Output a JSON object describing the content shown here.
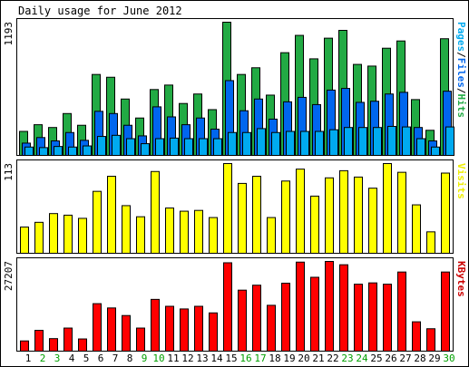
{
  "chart_data": {
    "type": "bar",
    "title": "Daily usage for June 2012",
    "categories": [
      "1",
      "2",
      "3",
      "4",
      "5",
      "6",
      "7",
      "8",
      "9",
      "10",
      "11",
      "12",
      "13",
      "14",
      "15",
      "16",
      "17",
      "18",
      "19",
      "20",
      "21",
      "22",
      "23",
      "24",
      "25",
      "26",
      "27",
      "28",
      "29",
      "30"
    ],
    "weekend_days": [
      "2",
      "3",
      "9",
      "10",
      "16",
      "17",
      "23",
      "24",
      "30"
    ],
    "panels": [
      {
        "id": "hits",
        "max_label": "1193",
        "ylim": [
          0,
          1193
        ],
        "legend": [
          {
            "text": "Pages",
            "color": "#00aaf0"
          },
          {
            "text": "/",
            "color": "#000000"
          },
          {
            "text": "Files",
            "color": "#0066ee"
          },
          {
            "text": "/",
            "color": "#000000"
          },
          {
            "text": "Hits",
            "color": "#22aa44"
          }
        ],
        "series": [
          {
            "name": "Hits",
            "color": "#22aa44",
            "values": [
              215,
              275,
              250,
              375,
              270,
              725,
              700,
              505,
              335,
              590,
              630,
              465,
              550,
              410,
              1193,
              725,
              785,
              540,
              920,
              1075,
              865,
              1050,
              1120,
              815,
              800,
              960,
              1025,
              500,
              225,
              1045
            ]
          },
          {
            "name": "Files",
            "color": "#0066ee",
            "values": [
              110,
              160,
              130,
              205,
              135,
              395,
              375,
              270,
              175,
              435,
              345,
              275,
              335,
              235,
              670,
              400,
              505,
              325,
              480,
              520,
              455,
              585,
              600,
              475,
              485,
              550,
              565,
              250,
              130,
              575
            ]
          },
          {
            "name": "Pages",
            "color": "#00aaf0",
            "values": [
              75,
              70,
              80,
              75,
              85,
              170,
              180,
              150,
              105,
              150,
              155,
              150,
              150,
              150,
              205,
              205,
              240,
              205,
              215,
              215,
              215,
              230,
              250,
              250,
              250,
              260,
              255,
              150,
              75,
              255
            ]
          }
        ]
      },
      {
        "id": "visits",
        "max_label": "113",
        "ylim": [
          0,
          113
        ],
        "legend": [
          {
            "text": "Visits",
            "color": "#eeee00"
          }
        ],
        "series": [
          {
            "name": "Visits",
            "color": "#ffff00",
            "values": [
              33,
              39,
              50,
              48,
              44,
              78,
              97,
              60,
              46,
              103,
              57,
              53,
              54,
              45,
              113,
              88,
              97,
              45,
              91,
              106,
              72,
              95,
              104,
              96,
              82,
              113,
              102,
              61,
              27,
              101
            ]
          }
        ]
      },
      {
        "id": "kbytes",
        "max_label": "27207",
        "ylim": [
          0,
          27207
        ],
        "legend": [
          {
            "text": "KBytes",
            "color": "#cc0000"
          }
        ],
        "series": [
          {
            "name": "KBytes",
            "color": "#ff0000",
            "values": [
              3100,
              6300,
              3800,
              7000,
              3700,
              14400,
              13100,
              10800,
              7000,
              15700,
              13600,
              12800,
              13600,
              11600,
              26800,
              18500,
              20000,
              13900,
              20600,
              27000,
              22400,
              27207,
              26200,
              20300,
              20700,
              20300,
              24000,
              8900,
              6800,
              24000
            ]
          }
        ]
      }
    ]
  }
}
